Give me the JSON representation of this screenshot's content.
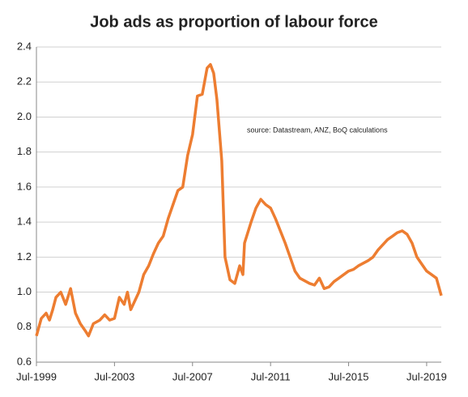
{
  "chart_data": {
    "type": "line",
    "title": "Job ads as proportion of labour force",
    "annotation": "source:  Datastream, ANZ, BoQ calculations",
    "x": [
      "1999-07",
      "1999-10",
      "2000-01",
      "2000-03",
      "2000-05",
      "2000-07",
      "2000-10",
      "2001-01",
      "2001-04",
      "2001-07",
      "2001-10",
      "2002-01",
      "2002-03",
      "2002-06",
      "2002-10",
      "2003-01",
      "2003-04",
      "2003-07",
      "2003-10",
      "2004-01",
      "2004-03",
      "2004-05",
      "2004-10",
      "2005-01",
      "2005-04",
      "2005-07",
      "2005-10",
      "2006-01",
      "2006-04",
      "2006-07",
      "2006-10",
      "2007-01",
      "2007-04",
      "2007-07",
      "2007-10",
      "2008-01",
      "2008-04",
      "2008-06",
      "2008-08",
      "2008-10",
      "2009-01",
      "2009-03",
      "2009-06",
      "2009-09",
      "2009-12",
      "2010-02",
      "2010-03",
      "2010-07",
      "2010-10",
      "2011-01",
      "2011-04",
      "2011-07",
      "2011-10",
      "2012-01",
      "2012-04",
      "2012-07",
      "2012-10",
      "2013-01",
      "2013-07",
      "2013-10",
      "2014-01",
      "2014-04",
      "2014-07",
      "2014-10",
      "2015-01",
      "2015-07",
      "2015-10",
      "2016-01",
      "2016-07",
      "2016-10",
      "2017-01",
      "2017-07",
      "2017-10",
      "2018-01",
      "2018-04",
      "2018-07",
      "2018-10",
      "2019-01",
      "2019-04",
      "2019-07",
      "2019-10",
      "2020-01",
      "2020-04"
    ],
    "series": [
      {
        "name": "Job ads",
        "color": "#ed7d31",
        "values": [
          0.75,
          0.85,
          0.88,
          0.84,
          0.9,
          0.97,
          1.0,
          0.93,
          1.02,
          0.88,
          0.82,
          0.78,
          0.75,
          0.82,
          0.84,
          0.87,
          0.84,
          0.85,
          0.97,
          0.93,
          1.0,
          0.9,
          1.0,
          1.1,
          1.15,
          1.22,
          1.28,
          1.32,
          1.42,
          1.5,
          1.58,
          1.6,
          1.78,
          1.9,
          2.12,
          2.13,
          2.28,
          2.3,
          2.25,
          2.1,
          1.75,
          1.2,
          1.07,
          1.05,
          1.15,
          1.1,
          1.28,
          1.4,
          1.48,
          1.53,
          1.5,
          1.48,
          1.42,
          1.35,
          1.28,
          1.2,
          1.12,
          1.08,
          1.05,
          1.04,
          1.08,
          1.02,
          1.03,
          1.06,
          1.08,
          1.12,
          1.13,
          1.15,
          1.18,
          1.2,
          1.24,
          1.3,
          1.32,
          1.34,
          1.35,
          1.33,
          1.28,
          1.2,
          1.16,
          1.12,
          1.1,
          1.08,
          0.98
        ]
      }
    ],
    "xlim": [
      "1999-07",
      "2020-04"
    ],
    "xticks": [
      {
        "value": "1999-07",
        "label": "Jul-1999"
      },
      {
        "value": "2003-07",
        "label": "Jul-2003"
      },
      {
        "value": "2007-07",
        "label": "Jul-2007"
      },
      {
        "value": "2011-07",
        "label": "Jul-2011"
      },
      {
        "value": "2015-07",
        "label": "Jul-2015"
      },
      {
        "value": "2019-07",
        "label": "Jul-2019"
      }
    ],
    "ylim": [
      0.6,
      2.4
    ],
    "yticks": [
      {
        "value": 0.6,
        "label": "0.6"
      },
      {
        "value": 0.8,
        "label": "0.8"
      },
      {
        "value": 1.0,
        "label": "1.0"
      },
      {
        "value": 1.2,
        "label": "1.2"
      },
      {
        "value": 1.4,
        "label": "1.4"
      },
      {
        "value": 1.6,
        "label": "1.6"
      },
      {
        "value": 1.8,
        "label": "1.8"
      },
      {
        "value": 2.0,
        "label": "2.0"
      },
      {
        "value": 2.2,
        "label": "2.2"
      },
      {
        "value": 2.4,
        "label": "2.4"
      }
    ],
    "grid": true
  }
}
